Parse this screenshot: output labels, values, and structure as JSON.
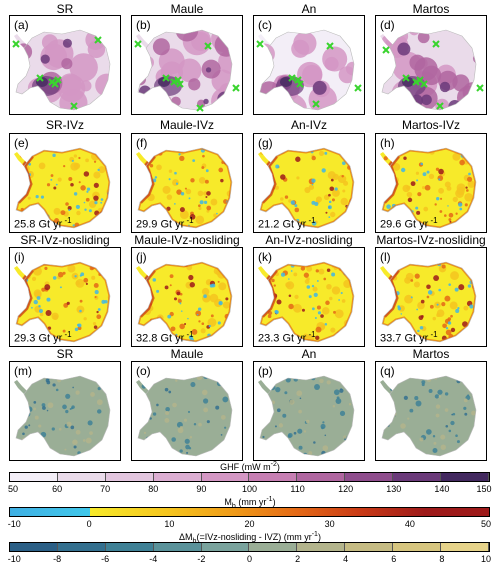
{
  "rows": [
    {
      "titles": [
        "SR",
        "Maule",
        "An",
        "Martos"
      ],
      "labels": [
        "(a)",
        "(b)",
        "(c)",
        "(d)"
      ],
      "type": "ghf"
    },
    {
      "titles": [
        "SR-IVz",
        "Maule-IVz",
        "An-IVz",
        "Martos-IVz"
      ],
      "labels": [
        "(e)",
        "(f)",
        "(g)",
        "(h)"
      ],
      "fluxes": [
        "25.8 Gt yr",
        "29.9 Gt yr",
        "21.2 Gt yr",
        "29.6 Gt yr"
      ],
      "unit_exp": "-1",
      "type": "mb"
    },
    {
      "titles": [
        "SR-IVz-nosliding",
        "Maule-IVz-nosliding",
        "An-IVz-nosliding",
        "Martos-IVz-nosliding"
      ],
      "labels": [
        "(i)",
        "(j)",
        "(k)",
        "(l)"
      ],
      "fluxes": [
        "29.3 Gt yr",
        "32.8 Gt yr",
        "23.3 Gt yr",
        "33.7 Gt yr"
      ],
      "unit_exp": "-1",
      "type": "mb"
    },
    {
      "titles": [
        "SR",
        "Maule",
        "An",
        "Martos"
      ],
      "labels": [
        "(m)",
        "(o)",
        "(p)",
        "(q)"
      ],
      "type": "diff"
    }
  ],
  "colorbars": [
    {
      "title_pre": "GHF (mW m",
      "title_exp": "-2",
      "title_post": ")",
      "ticks": [
        "50",
        "60",
        "70",
        "80",
        "90",
        "100",
        "110",
        "120",
        "130",
        "140",
        "150"
      ],
      "colors": [
        "#f3eef7",
        "#eadbea",
        "#e3c6df",
        "#dcaed2",
        "#d497c4",
        "#c77fb3",
        "#b066a0",
        "#8f4d8d",
        "#6b3a7a",
        "#43295f"
      ]
    },
    {
      "title_pre": "M",
      "title_sub": "b",
      "title_mid": " (mm yr",
      "title_exp": "-1",
      "title_post": ")",
      "ticks": [
        "-10",
        "0",
        "10",
        "20",
        "30",
        "40",
        "50"
      ],
      "colors": [
        "#3fb6e6",
        "#39c2e8",
        "#f7ea2a",
        "#f5c41e",
        "#ef9a19",
        "#e46916",
        "#c93a16",
        "#9e1a1a"
      ]
    },
    {
      "title_pre": "ΔM",
      "title_sub": "b",
      "title_mid": "(=IVz-nosliding - IVZ) (mm yr",
      "title_exp": "-1",
      "title_post": ")",
      "ticks": [
        "-10",
        "-8",
        "-6",
        "-4",
        "-2",
        "0",
        "2",
        "4",
        "6",
        "8",
        "10"
      ],
      "colors": [
        "#2b5f86",
        "#34708f",
        "#3f8196",
        "#5a929a",
        "#7aa39d",
        "#9aae96",
        "#b3b48c",
        "#c5bb83",
        "#d6c57f",
        "#e6d38a"
      ]
    }
  ],
  "marker_color": "#39d42e",
  "ice_outline_color": "#ffffff"
}
